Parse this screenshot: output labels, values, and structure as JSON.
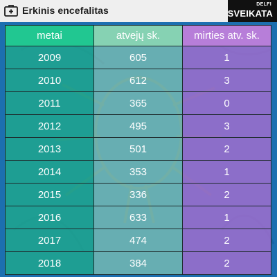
{
  "header": {
    "title": "Erkinis encefalitas",
    "brand_small": "DELFI",
    "brand_main": "SVEIKATA"
  },
  "table": {
    "columns": [
      "metai",
      "atvejų sk.",
      "mirties atv. sk."
    ],
    "rows": [
      [
        "2009",
        "605",
        "1"
      ],
      [
        "2010",
        "612",
        "3"
      ],
      [
        "2011",
        "365",
        "0"
      ],
      [
        "2012",
        "495",
        "3"
      ],
      [
        "2013",
        "501",
        "2"
      ],
      [
        "2014",
        "353",
        "1"
      ],
      [
        "2015",
        "336",
        "2"
      ],
      [
        "2016",
        "633",
        "1"
      ],
      [
        "2017",
        "474",
        "2"
      ],
      [
        "2018",
        "384",
        "2"
      ]
    ]
  },
  "colors": {
    "background": "#1c6fb0",
    "col_year": "#21c791",
    "col_cases": "#86d2b3",
    "col_deaths": "#b77ed9"
  },
  "icons": {
    "header_icon": "first-aid-kit-icon",
    "background_art": "tick-icon"
  }
}
